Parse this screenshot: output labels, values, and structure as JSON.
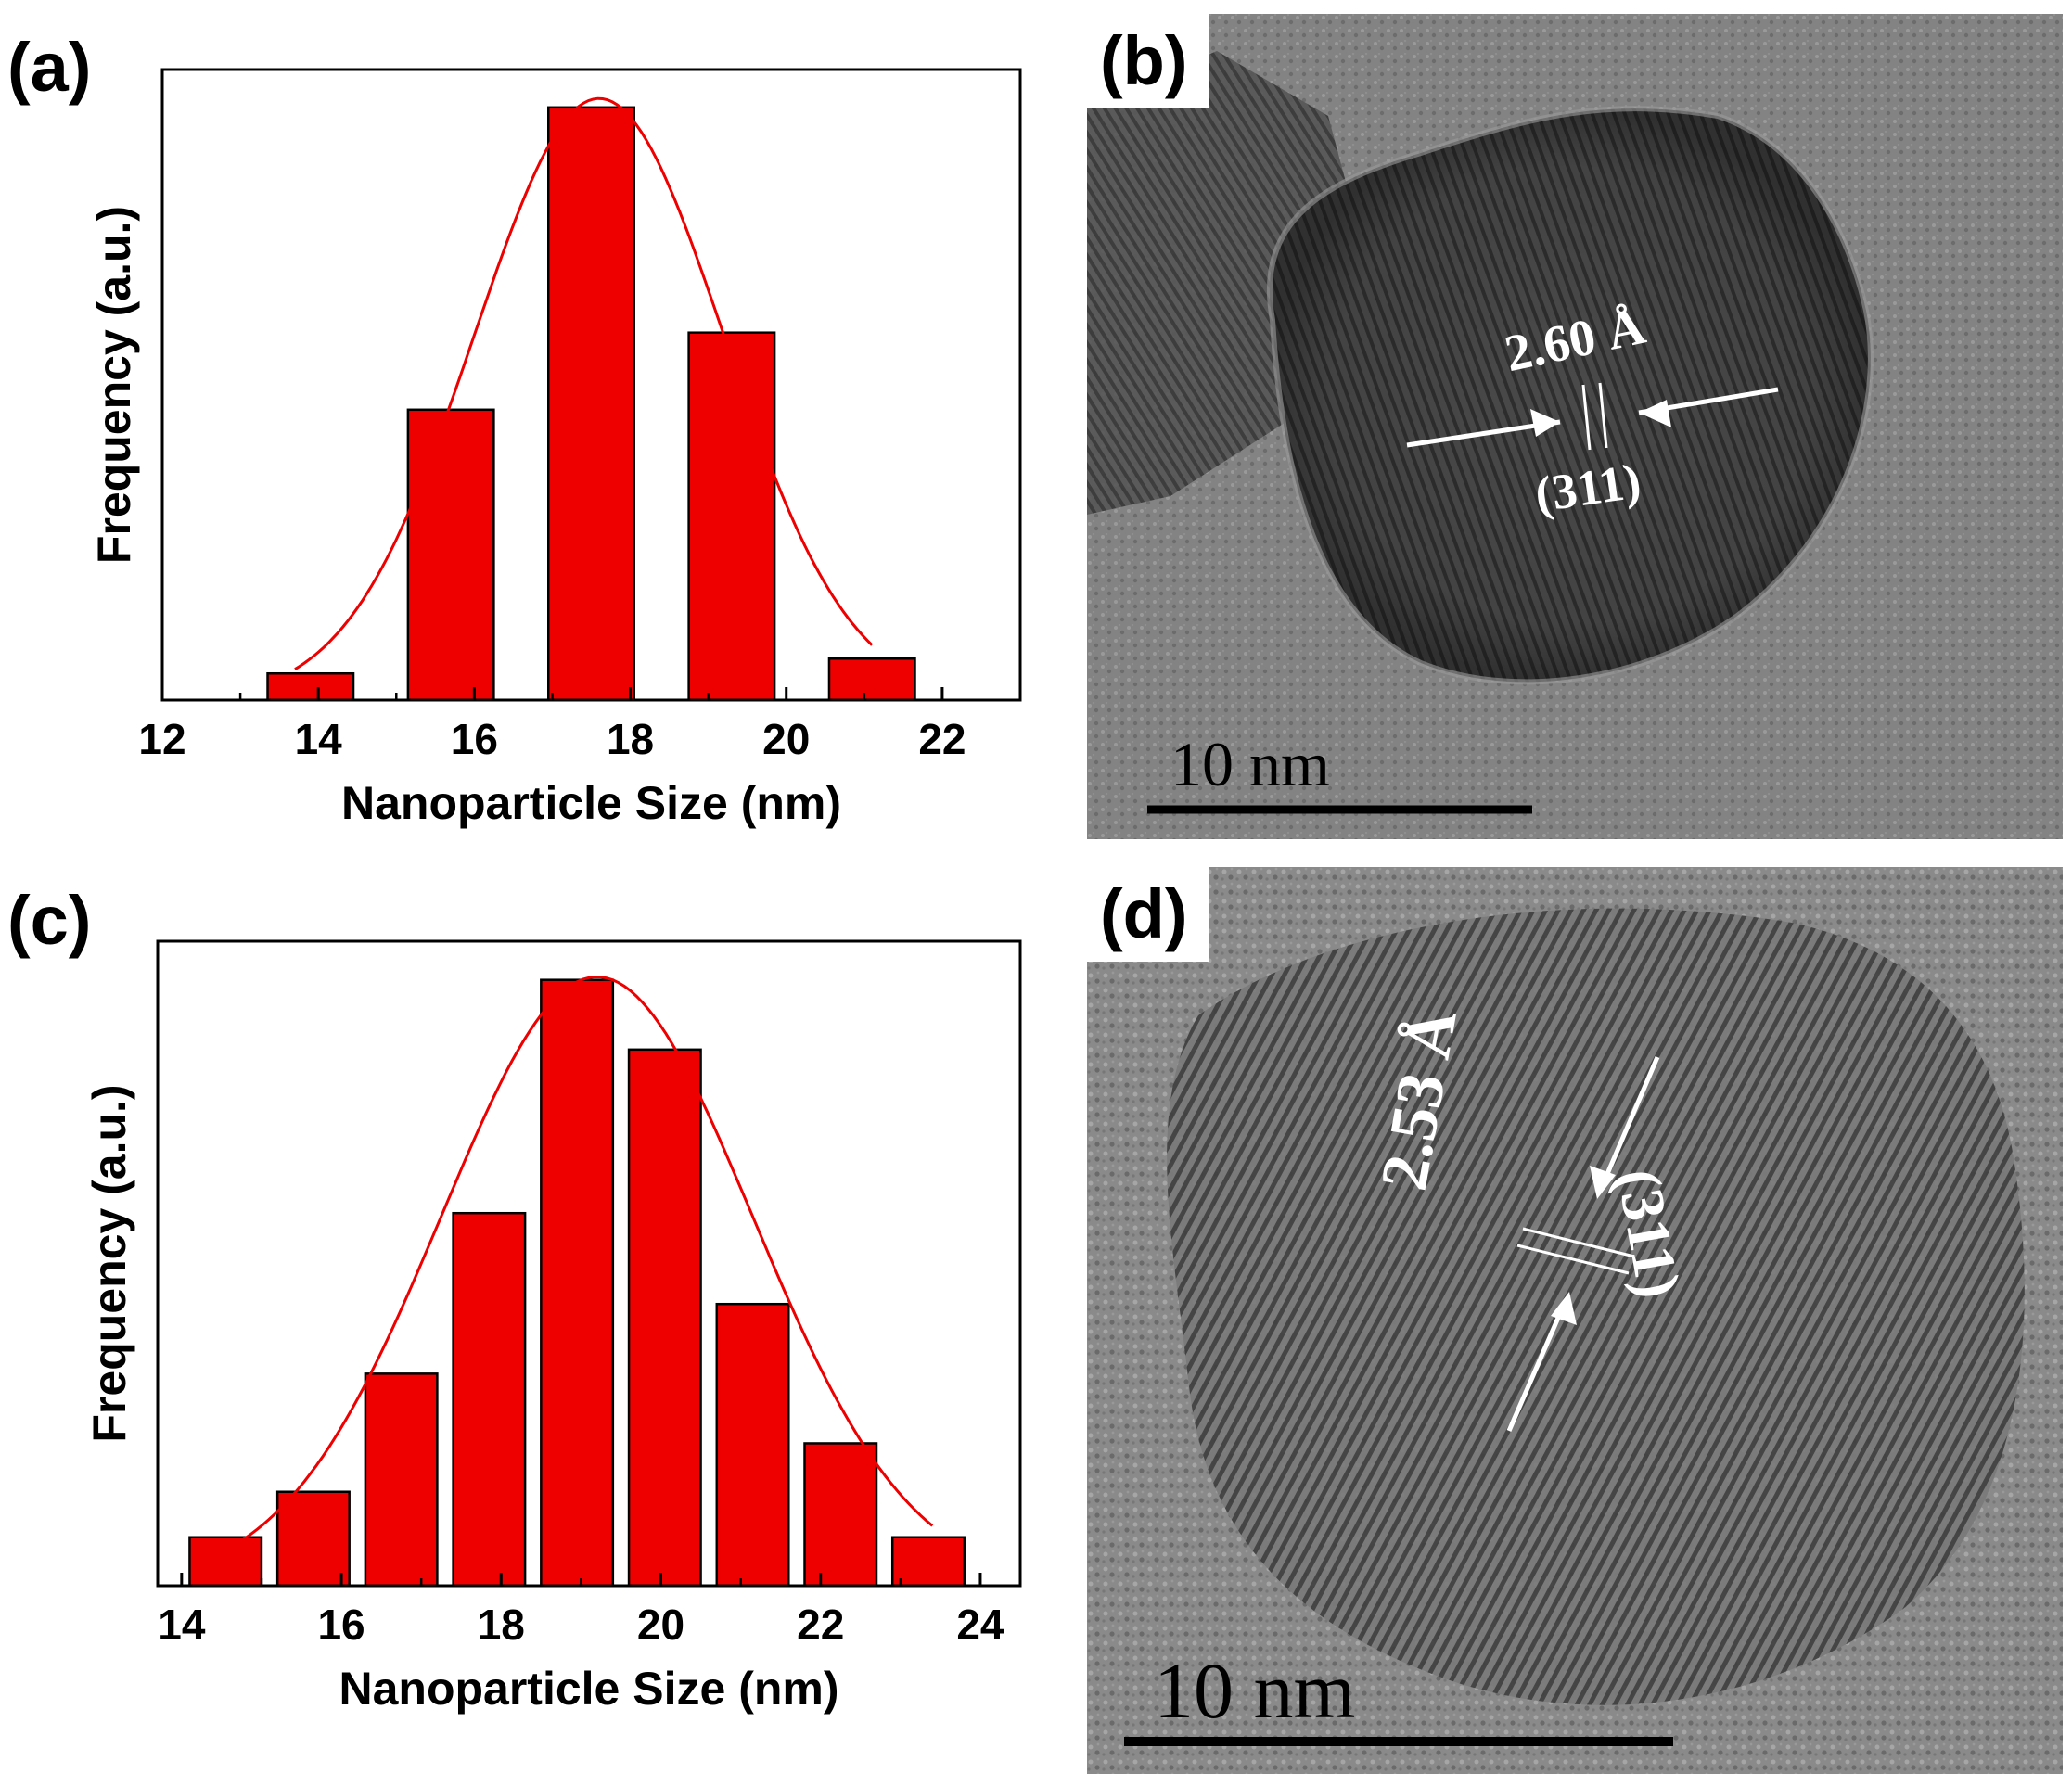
{
  "panels": {
    "a": {
      "label": "(a)"
    },
    "b": {
      "label": "(b)"
    },
    "c": {
      "label": "(c)"
    },
    "d": {
      "label": "(d)"
    }
  },
  "chart_data": [
    {
      "type": "bar",
      "panel": "(a)",
      "xlabel": "Nanoparticle Size (nm)",
      "ylabel": "Frequency (a.u.)",
      "xlim": [
        12,
        23
      ],
      "ylim": [
        0,
        1
      ],
      "xticks": [
        12,
        14,
        16,
        18,
        20,
        22
      ],
      "bar_width": 1.1,
      "x": [
        13.9,
        15.7,
        17.5,
        19.3,
        21.1
      ],
      "values": [
        0.045,
        0.49,
        1.0,
        0.62,
        0.07
      ],
      "fit_curve": {
        "type": "gaussian",
        "mean": 17.6,
        "sigma": 1.6,
        "amplitude": 1.015,
        "x_range": [
          13.7,
          21.1
        ]
      },
      "bar_color": "#ee0000",
      "curve_color": "#ee0000"
    },
    {
      "type": "bar",
      "panel": "(c)",
      "xlabel": "Nanoparticle Size (nm)",
      "ylabel": "Frequency (a.u.)",
      "xlim": [
        13.7,
        24.5
      ],
      "ylim": [
        0,
        1
      ],
      "xticks": [
        14,
        16,
        18,
        20,
        22,
        24
      ],
      "bar_width": 0.9,
      "x": [
        14.55,
        15.65,
        16.75,
        17.85,
        18.95,
        20.05,
        21.15,
        22.25,
        23.35
      ],
      "values": [
        0.08,
        0.155,
        0.35,
        0.615,
        1.0,
        0.885,
        0.465,
        0.235,
        0.08
      ],
      "fit_curve": {
        "type": "gaussian",
        "mean": 19.2,
        "sigma": 1.95,
        "amplitude": 1.005,
        "x_range": [
          14.5,
          23.4
        ]
      },
      "bar_color": "#ee0000",
      "curve_color": "#ee0000"
    }
  ],
  "tem_images": {
    "b": {
      "spacing": "2.60 Å",
      "plane": "(311)",
      "scale": "10 nm"
    },
    "d": {
      "spacing": "2.53 Å",
      "plane": "(311)",
      "scale": "10 nm"
    }
  }
}
